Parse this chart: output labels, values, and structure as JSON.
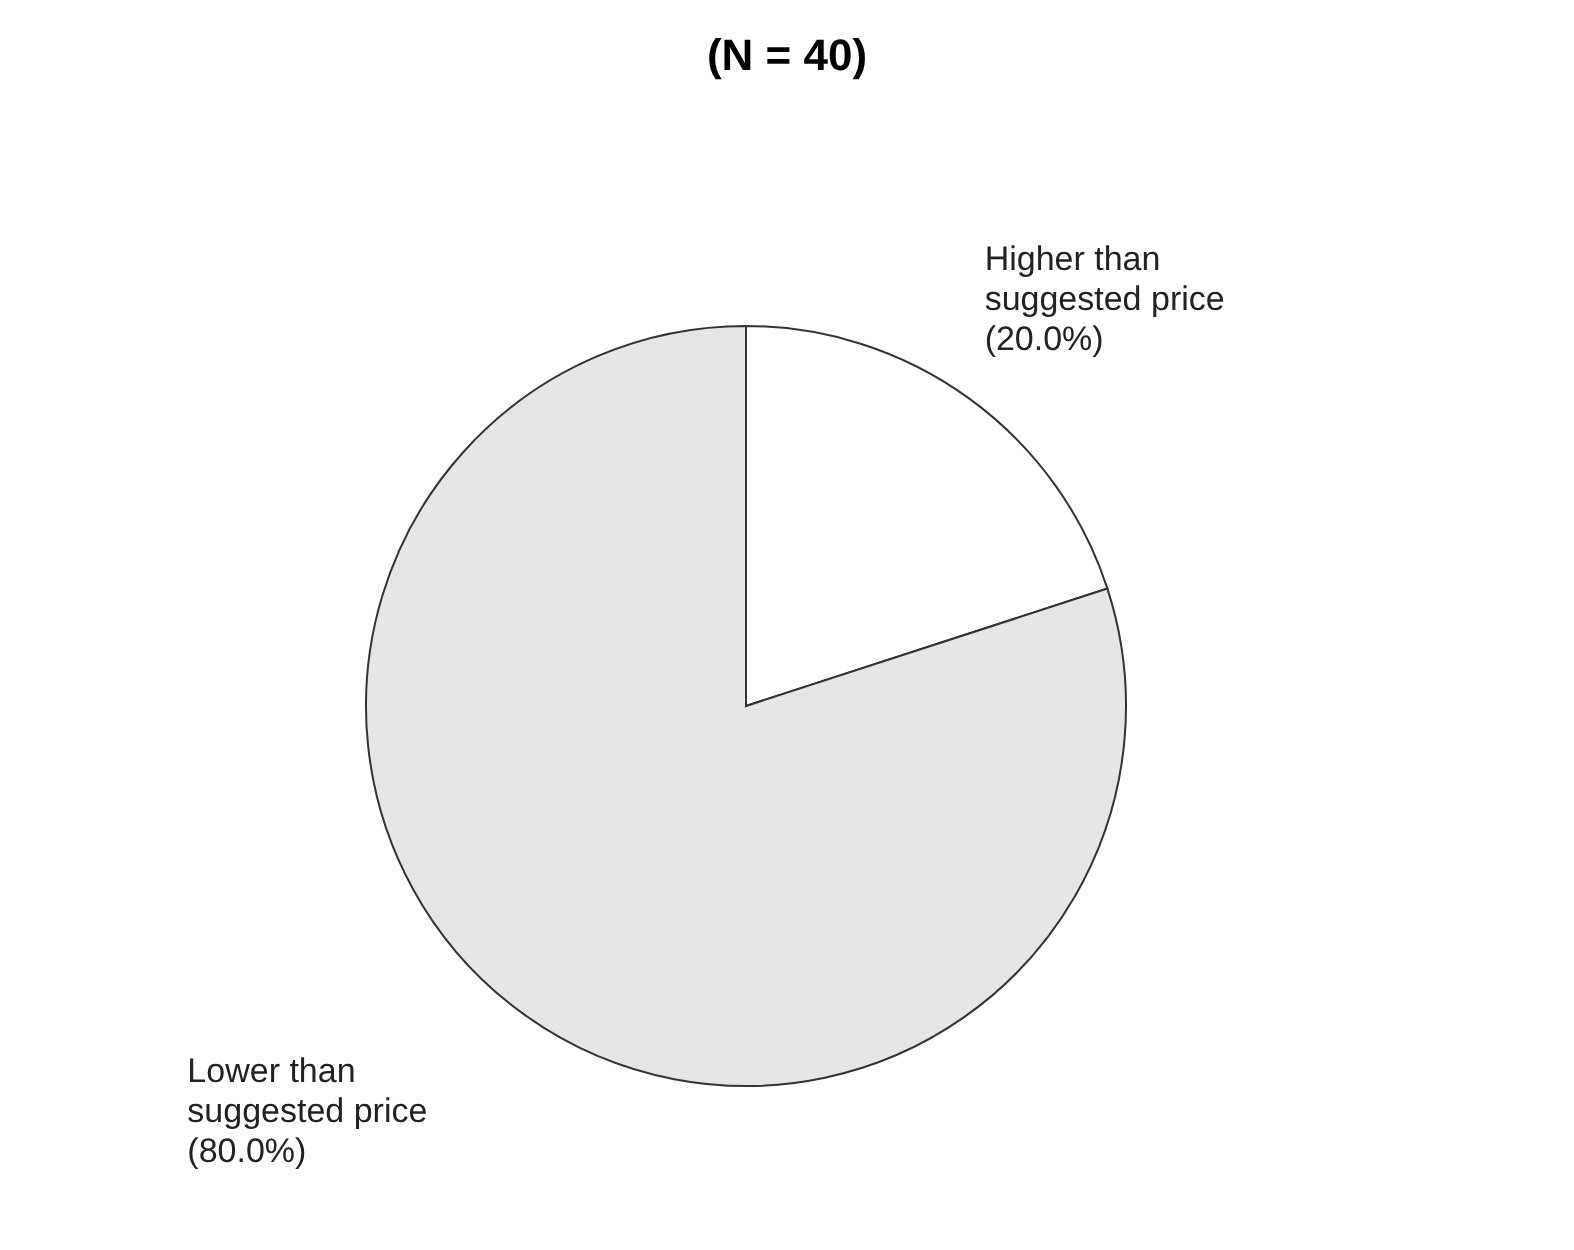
{
  "chart_data": {
    "type": "pie",
    "title": "(N = 40)",
    "categories": [
      "Higher than suggested price",
      "Lower than suggested price"
    ],
    "values": [
      20,
      80
    ],
    "colors": [
      "#ffffff",
      "#e6e6e6"
    ],
    "value_labels": [
      "(20.0%)",
      "(80.0%)"
    ]
  }
}
